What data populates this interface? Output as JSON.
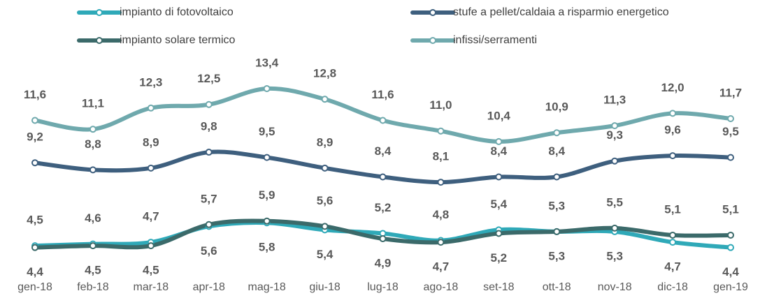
{
  "chart_data": {
    "type": "line",
    "categories": [
      "gen-18",
      "feb-18",
      "mar-18",
      "apr-18",
      "mag-18",
      "giu-18",
      "lug-18",
      "ago-18",
      "set-18",
      "ott-18",
      "nov-18",
      "dic-18",
      "gen-19"
    ],
    "series": [
      {
        "name": "impianto di fotovoltaico",
        "color": "#2fa9b8",
        "values": [
          4.5,
          4.6,
          4.7,
          5.6,
          5.8,
          5.4,
          5.2,
          4.8,
          5.4,
          5.3,
          5.3,
          4.7,
          4.4
        ],
        "value_labels": [
          "4,5",
          "4,6",
          "4,7",
          "5,6",
          "5,8",
          "5,4",
          "5,2",
          "4,8",
          "5,4",
          "5,3",
          "5,3",
          "4,7",
          "4,4"
        ]
      },
      {
        "name": "stufe a pellet/caldaia a risparmio energetico",
        "color": "#3e5f7e",
        "values": [
          9.2,
          8.8,
          8.9,
          9.8,
          9.5,
          8.9,
          8.4,
          8.1,
          8.4,
          8.4,
          9.3,
          9.6,
          9.5
        ],
        "value_labels": [
          "9,2",
          "8,8",
          "8,9",
          "9,8",
          "9,5",
          "8,9",
          "8,4",
          "8,1",
          "8,4",
          "8,4",
          "9,3",
          "9,6",
          "9,5"
        ]
      },
      {
        "name": "impianto solare termico",
        "color": "#3b6a6a",
        "values": [
          4.4,
          4.5,
          4.5,
          5.7,
          5.9,
          5.6,
          4.9,
          4.7,
          5.2,
          5.3,
          5.5,
          5.1,
          5.1
        ],
        "value_labels": [
          "4,4",
          "4,5",
          "4,5",
          "5,7",
          "5,9",
          "5,6",
          "4,9",
          "4,7",
          "5,2",
          "5,3",
          "5,5",
          "5,1",
          "5,1"
        ]
      },
      {
        "name": "infissi/serramenti",
        "color": "#6fa9ad",
        "values": [
          11.6,
          11.1,
          12.3,
          12.5,
          13.4,
          12.8,
          11.6,
          11.0,
          10.4,
          10.9,
          11.3,
          12.0,
          11.7
        ],
        "value_labels": [
          "11,6",
          "11,1",
          "12,3",
          "12,5",
          "13,4",
          "12,8",
          "11,6",
          "11,0",
          "10,4",
          "10,9",
          "11,3",
          "12,0",
          "11,7"
        ]
      }
    ],
    "legend": "top"
  }
}
